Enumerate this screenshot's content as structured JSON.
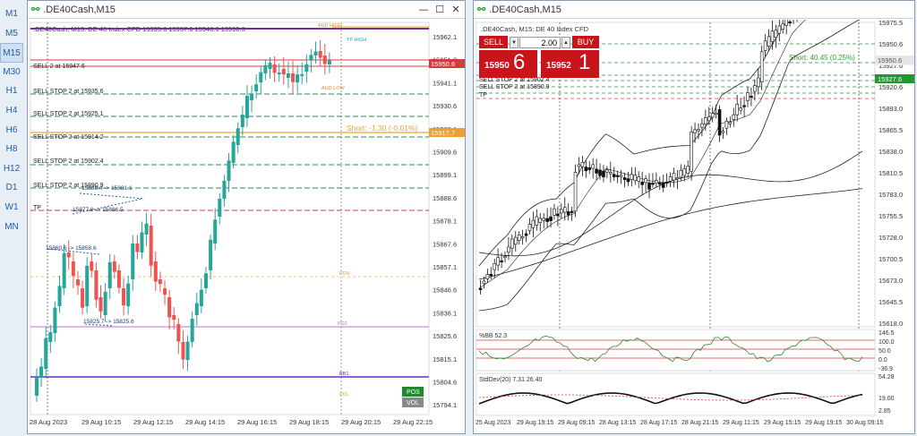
{
  "timeframes": [
    {
      "label": "M1",
      "active": false
    },
    {
      "label": "M5",
      "active": false
    },
    {
      "label": "M15",
      "active": true
    },
    {
      "label": "M30",
      "active": false
    },
    {
      "label": "H1",
      "active": false
    },
    {
      "label": "H4",
      "active": false
    },
    {
      "label": "H6",
      "active": false
    },
    {
      "label": "H8",
      "active": false
    },
    {
      "label": "H12",
      "active": false
    },
    {
      "label": "D1",
      "active": false
    },
    {
      "label": "W1",
      "active": false
    },
    {
      "label": "MN",
      "active": false
    }
  ],
  "left_window": {
    "title": ".DE40Cash,M15",
    "chart_header": ".DE40Cash, M15: DE 40 Index CFD  15955.6 15957.6 15946.6 15950.6",
    "price_labels": [
      "15962.1",
      "15951.3",
      "15941.1",
      "15930.6",
      "15920.1",
      "15909.6",
      "15899.1",
      "15888.6",
      "15878.1",
      "15867.6",
      "15857.1",
      "15846.6",
      "15836.1",
      "15825.6",
      "15815.1",
      "15804.6",
      "15794.1"
    ],
    "current_price": "15950.6",
    "short_price": "15917.7",
    "time_labels": [
      "28 Aug 2023",
      "29 Aug 10:15",
      "29 Aug 12:15",
      "29 Aug 14:15",
      "29 Aug 16:15",
      "29 Aug 18:15",
      "29 Aug 20:15",
      "29 Aug 22:15"
    ],
    "order_labels": {
      "s1": "SELL 2 at 15947.6",
      "s2": "SELL STOP 2 at 15935.6",
      "s3": "SELL STOP 2 at 15925.1",
      "s4": "SELL STOP 2 at 15914.2",
      "s5": "SELL STOP 2 at 15902.4",
      "s6": "SELL STOP 2 at 15890.9",
      "tp": "TP"
    },
    "short_text": "Short: -1.30  (-0.01%)",
    "small_labels": {
      "aud_high": "AUD HIGH",
      "tp_right": "TP HIGH",
      "aud_low": "AUD LOW",
      "pdh": "PDH",
      "pdl": "PDL",
      "pd2": "PD2",
      "bb1": "BB1"
    },
    "trade_arrows": {
      "a1": "15888.4 -> 15881.1",
      "a2": "15877.6 -> 15886.5",
      "a3": "15860.6 -> 15858.6",
      "a4": "15825.7 -> 15825.6"
    },
    "pos_label": "POS",
    "vol_label": "VOL"
  },
  "right_window": {
    "title": ".DE40Cash,M15",
    "chart_header": ".DE40Cash, M15: DE 40 Index CFD",
    "sell_label": "SELL",
    "buy_label": "BUY",
    "volume": "2.00",
    "sell_price_small": "15950",
    "sell_price_big": "6",
    "buy_price_small": "15952",
    "buy_price_big": "1",
    "order_labels": {
      "s1": "SELL STOP 2 at 15902.4",
      "s2": "SELL STOP 2 at 15890.9",
      "tp": "TP"
    },
    "short_text": "Short: 40.45  (0.25%)",
    "price_labels": [
      "15975.5",
      "15950.6",
      "15927.6",
      "15920.6",
      "15893.0",
      "15865.5",
      "15838.0",
      "15810.5",
      "15783.0",
      "15755.5",
      "15728.0",
      "15700.5",
      "15673.0",
      "15645.5",
      "15618.0"
    ],
    "current_price": "15950.6",
    "green_price": "15927.6",
    "bb_label": "%BB 52.3",
    "bb_scale": [
      "146.5",
      "100.0",
      "50.0",
      "0.0",
      "-36.9"
    ],
    "std_label": "StdDev(20) 7.31 26.40",
    "std_scale": [
      "54.28",
      "19.00",
      "2.85"
    ],
    "time_labels": [
      "25 Aug 2023",
      "29 Aug 19:15",
      "29 Aug 09:15",
      "28 Aug 13:15",
      "28 Aug 17:15",
      "28 Aug 21:15",
      "29 Aug 11:15",
      "29 Aug 15:15",
      "29 Aug 19:15",
      "30 Aug 09:15"
    ]
  }
}
